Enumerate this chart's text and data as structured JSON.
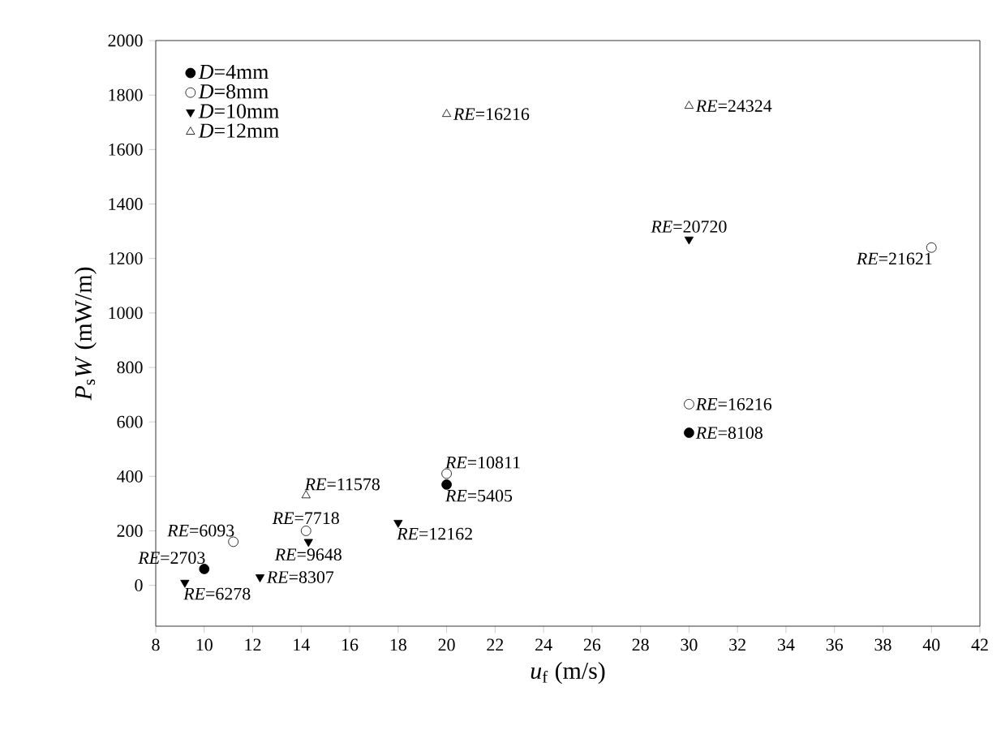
{
  "chart_data": {
    "type": "scatter",
    "xlabel": "*u*$_{f}$ (m/s)",
    "ylabel": "*P*$_{s}$*W* (mW/m)",
    "series": [
      {
        "name": "*D*=4mm",
        "color": "#000000",
        "marker": "circle",
        "x": [
          10,
          20,
          30
        ],
        "values": [
          60,
          370,
          560
        ]
      },
      {
        "name": "*D*=8mm",
        "color": "#000000",
        "marker": "circle",
        "x": [
          11.2,
          14.2,
          20,
          30,
          40
        ],
        "values": [
          160,
          200,
          410,
          665,
          1240
        ]
      },
      {
        "name": "*D*=10mm",
        "color": "#000000",
        "marker": "triangle",
        "x": [
          9.2,
          12.3,
          14.3,
          18,
          30
        ],
        "values": [
          10,
          30,
          160,
          230,
          1270
        ]
      },
      {
        "name": "*D*=12mm",
        "color": "#000000",
        "marker": "triangle",
        "x": [
          14.2,
          20,
          30
        ],
        "values": [
          330,
          1730,
          1760
        ]
      }
    ],
    "xlim": [
      8,
      42
    ],
    "xticks": [
      8,
      10,
      12,
      14,
      16,
      18,
      20,
      22,
      24,
      26,
      28,
      30,
      32,
      34,
      36,
      38,
      40,
      42
    ],
    "ylim": [
      -150,
      2000
    ],
    "yticks": [
      0,
      200,
      400,
      600,
      800,
      1000,
      1200,
      1400,
      1600,
      1800,
      2000
    ],
    "grid": false,
    "legend": "top left",
    "annotations": [
      {
        "text": "*RE*=2703",
        "x": 10,
        "y": 60
      },
      {
        "text": "*RE*=6278",
        "x": 9.2,
        "y": 10
      },
      {
        "text": "*RE*=6093",
        "x": 11.2,
        "y": 160
      },
      {
        "text": "*RE*=8307",
        "x": 12.3,
        "y": 30
      },
      {
        "text": "*RE*=7718",
        "x": 14.2,
        "y": 200
      },
      {
        "text": "*RE*=9648",
        "x": 14.3,
        "y": 160
      },
      {
        "text": "*RE*=11578",
        "x": 14.2,
        "y": 330
      },
      {
        "text": "*RE*=12162",
        "x": 18,
        "y": 230
      },
      {
        "text": "*RE*=10811",
        "x": 20,
        "y": 410
      },
      {
        "text": "*RE*=5405",
        "x": 20,
        "y": 370
      },
      {
        "text": "*RE*=16216",
        "x": 20,
        "y": 1730
      },
      {
        "text": "*RE*=24324",
        "x": 30,
        "y": 1760
      },
      {
        "text": "*RE*=20720",
        "x": 30,
        "y": 1270
      },
      {
        "text": "*RE*=21621",
        "x": 40,
        "y": 1240
      },
      {
        "text": "*RE*=16216",
        "x": 30,
        "y": 665
      },
      {
        "text": "*RE*=8108",
        "x": 30,
        "y": 560
      }
    ]
  }
}
